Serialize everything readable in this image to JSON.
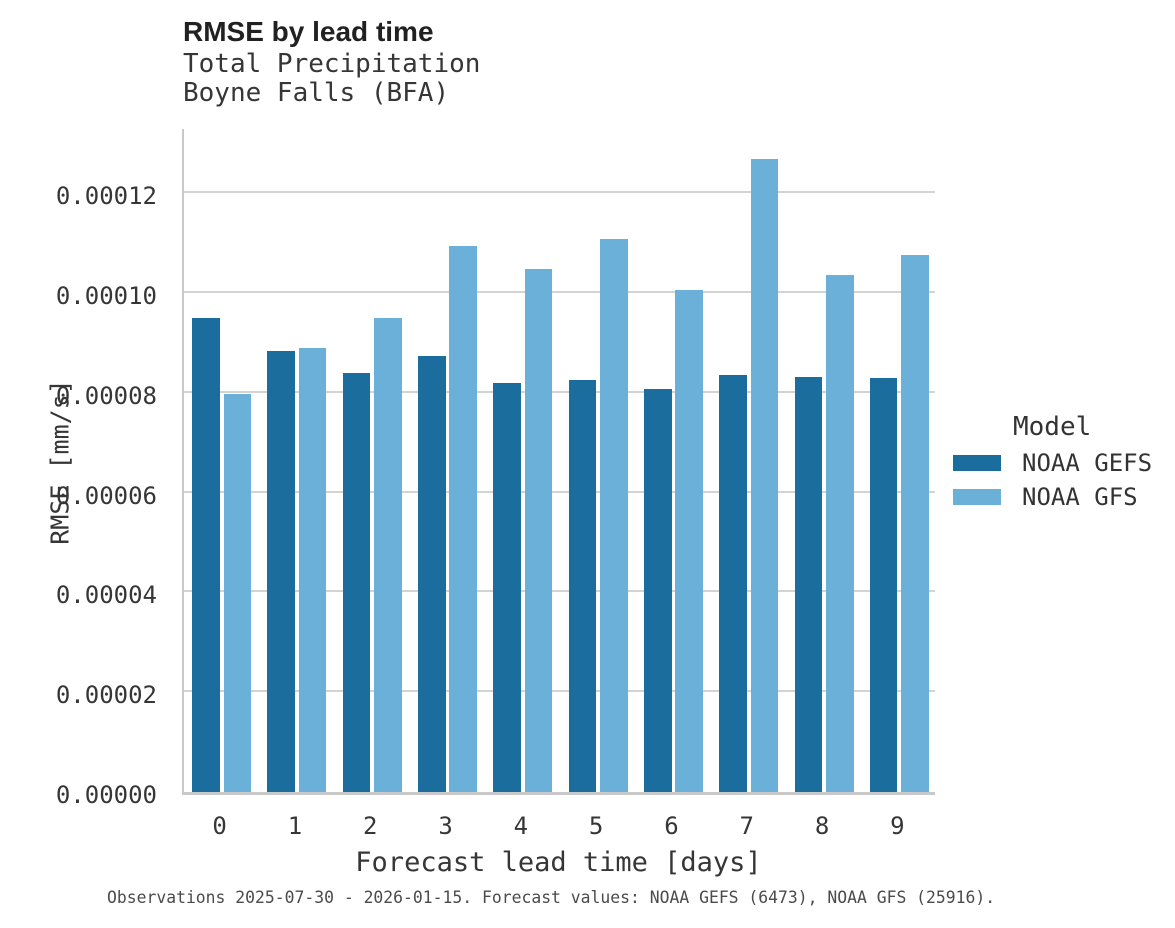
{
  "figure": {
    "title": "RMSE by lead time",
    "subtitle_line1": "Total Precipitation",
    "subtitle_line2": "Boyne Falls (BFA)",
    "caption": "Observations 2025-07-30 - 2026-01-15. Forecast values: NOAA GEFS (6473), NOAA GFS (25916)."
  },
  "legend": {
    "title": "Model",
    "items": [
      {
        "label": "NOAA GEFS",
        "color": "#1b6d9d"
      },
      {
        "label": "NOAA GFS",
        "color": "#6bb0d8"
      }
    ]
  },
  "chart_data": {
    "type": "bar",
    "title": "RMSE by lead time",
    "subtitle": [
      "Total Precipitation",
      "Boyne Falls (BFA)"
    ],
    "xlabel": "Forecast lead time [days]",
    "ylabel": "RMSE [mm/s]",
    "categories": [
      "0",
      "1",
      "2",
      "3",
      "4",
      "5",
      "6",
      "7",
      "8",
      "9"
    ],
    "series": [
      {
        "name": "NOAA GEFS",
        "color": "#1b6d9d",
        "values": [
          9.51e-05,
          8.84e-05,
          8.39e-05,
          8.73e-05,
          8.2e-05,
          8.25e-05,
          8.07e-05,
          8.36e-05,
          8.32e-05,
          8.29e-05
        ]
      },
      {
        "name": "NOAA GFS",
        "color": "#6bb0d8",
        "values": [
          7.97e-05,
          8.9e-05,
          9.51e-05,
          0.0001094,
          0.0001048,
          0.0001109,
          0.0001006,
          0.0001268,
          0.0001036,
          0.0001077
        ]
      }
    ],
    "ylim": [
      0,
      0.0001335
    ],
    "yticks": {
      "values": [
        0,
        2e-05,
        4e-05,
        6e-05,
        8e-05,
        0.0001,
        0.00012
      ],
      "labels": [
        "0.00000",
        "0.00002",
        "0.00004",
        "0.00006",
        "0.00008",
        "0.00010",
        "0.00012"
      ]
    },
    "grid": "horizontal",
    "legend_position": "right",
    "legend_title": "Model"
  },
  "colors": {
    "grid": "#d3d3d3",
    "axis": "#c9c9c9",
    "text": "#363636",
    "title_text": "#212121",
    "caption_text": "#4b4b4b",
    "background": "#ffffff"
  }
}
